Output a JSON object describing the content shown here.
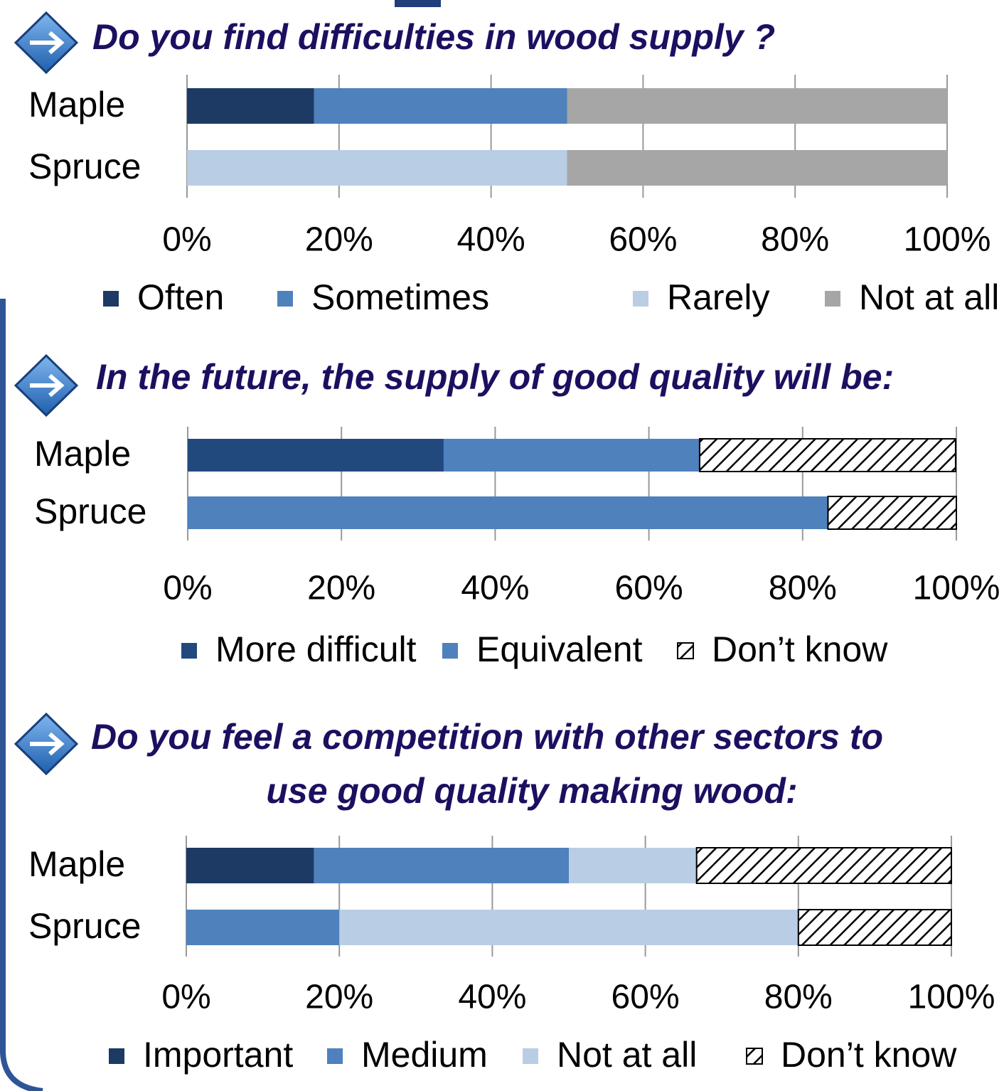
{
  "chart_data": [
    {
      "type": "bar",
      "orientation": "horizontal",
      "stacked": true,
      "title": [
        "Do you find difficulties in wood supply ?"
      ],
      "categories": [
        "Maple",
        "Spruce"
      ],
      "series": [
        {
          "name": "Often",
          "color": "#1c3a63",
          "values": [
            16.7,
            0
          ]
        },
        {
          "name": "Sometimes",
          "color": "#4f81bd",
          "values": [
            33.3,
            0
          ]
        },
        {
          "name": "Rarely",
          "color": "#b9cde5",
          "values": [
            0,
            50
          ]
        },
        {
          "name": "Not at all",
          "color": "#a6a6a6",
          "values": [
            50,
            50
          ]
        }
      ],
      "xlim": [
        0,
        100
      ],
      "xticks": [
        {
          "value": 0,
          "label": "0%"
        },
        {
          "value": 20,
          "label": "20%"
        },
        {
          "value": 40,
          "label": "40%"
        },
        {
          "value": 60,
          "label": "60%"
        },
        {
          "value": 80,
          "label": "80%"
        },
        {
          "value": 100,
          "label": "100%"
        }
      ],
      "grid": true,
      "legend": "bottom"
    },
    {
      "type": "bar",
      "orientation": "horizontal",
      "stacked": true,
      "title": [
        "In the future, the supply of good quality will be:"
      ],
      "categories": [
        "Maple",
        "Spruce"
      ],
      "series": [
        {
          "name": "More difficult",
          "color": "#22497e",
          "values": [
            33.3,
            0
          ]
        },
        {
          "name": "Equivalent",
          "color": "#4f81bd",
          "values": [
            33.3,
            83.3
          ]
        },
        {
          "name": "Don’t know",
          "color": "#000000",
          "pattern": "hatch",
          "values": [
            33.3,
            16.7
          ]
        }
      ],
      "xlim": [
        0,
        100
      ],
      "xticks": [
        {
          "value": 0,
          "label": "0%"
        },
        {
          "value": 20,
          "label": "20%"
        },
        {
          "value": 40,
          "label": "40%"
        },
        {
          "value": 60,
          "label": "60%"
        },
        {
          "value": 80,
          "label": "80%"
        },
        {
          "value": 100,
          "label": "100%"
        }
      ],
      "grid": true,
      "legend": "bottom"
    },
    {
      "type": "bar",
      "orientation": "horizontal",
      "stacked": true,
      "title": [
        "Do you feel a competition with other sectors to",
        "use good quality making wood:"
      ],
      "categories": [
        "Maple",
        "Spruce"
      ],
      "series": [
        {
          "name": "Important",
          "color": "#1c3a63",
          "values": [
            16.7,
            0
          ]
        },
        {
          "name": "Medium",
          "color": "#4f81bd",
          "values": [
            33.3,
            20
          ]
        },
        {
          "name": "Not at all",
          "color": "#b9cde5",
          "values": [
            16.7,
            60
          ]
        },
        {
          "name": "Don’t know",
          "color": "#000000",
          "pattern": "hatch",
          "values": [
            33.3,
            20
          ]
        }
      ],
      "xlim": [
        0,
        100
      ],
      "xticks": [
        {
          "value": 0,
          "label": "0%"
        },
        {
          "value": 20,
          "label": "20%"
        },
        {
          "value": 40,
          "label": "40%"
        },
        {
          "value": 60,
          "label": "60%"
        },
        {
          "value": 80,
          "label": "80%"
        },
        {
          "value": 100,
          "label": "100%"
        }
      ],
      "grid": true,
      "legend": "bottom"
    }
  ]
}
